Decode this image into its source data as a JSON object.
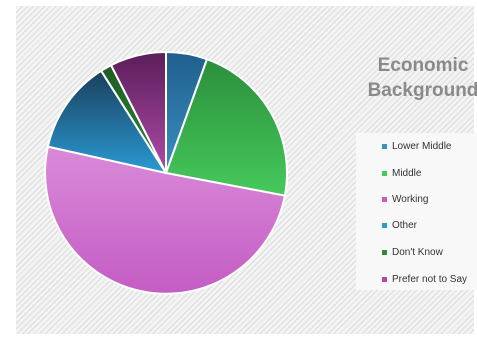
{
  "chart_data": {
    "type": "pie",
    "title_line1": "Economic",
    "title_line2": "Background",
    "slices": [
      {
        "label": "Lower Middle",
        "value": 5.5,
        "color": "#3a8fc4",
        "color_dark": "#1f5f8c"
      },
      {
        "label": "Middle",
        "value": 22.5,
        "color": "#47c95c",
        "color_dark": "#2a8f3b"
      },
      {
        "label": "Working",
        "value": 50.5,
        "color": "#c45cc4",
        "color_dark": "#d98ad9"
      },
      {
        "label": "Other",
        "value": 12.5,
        "color": "#2a9ad4",
        "color_dark": "#1a3f5c"
      },
      {
        "label": "Don't Know",
        "value": 1.5,
        "color": "#2e8a36",
        "color_dark": "#1c5c22"
      },
      {
        "label": "Prefer not to Say",
        "value": 7.5,
        "color": "#b04aa8",
        "color_dark": "#5a1e5a"
      }
    ],
    "legend_position": "right"
  }
}
